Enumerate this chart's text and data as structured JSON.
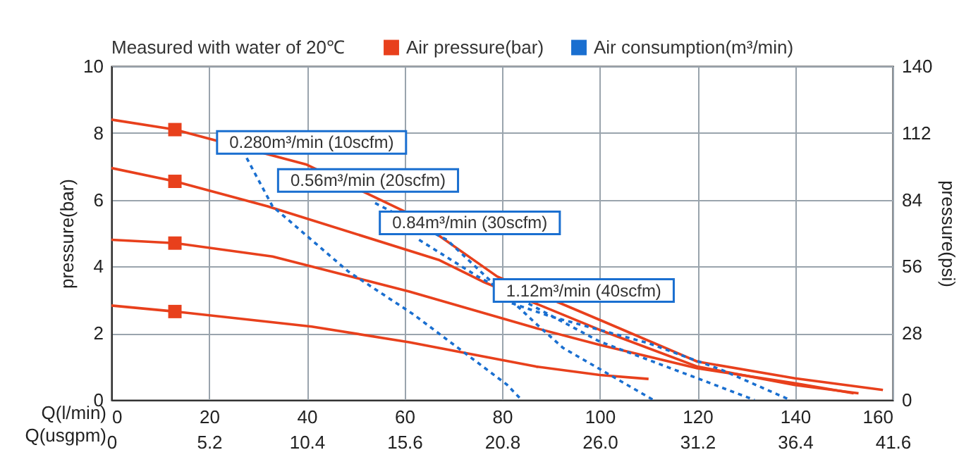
{
  "chart_data": {
    "type": "line",
    "legend_title": "Measured with water of 20℃",
    "xlabel": "Q(l/min)",
    "ylabel": "pressure(bar)",
    "y2label": "pressure(psi)",
    "x2label": "Q(usgpm)",
    "xlim": [
      0,
      160
    ],
    "xticks": [
      0,
      20,
      40,
      60,
      80,
      100,
      120,
      140,
      160
    ],
    "x2lim": [
      0,
      41.6
    ],
    "x2ticks": [
      0,
      5.2,
      10.4,
      15.6,
      20.8,
      {
        "value": 26,
        "label": "26.0"
      },
      31.2,
      36.4,
      41.6
    ],
    "ylim": [
      0,
      10
    ],
    "yticks": [
      0,
      2,
      4,
      6,
      8,
      10
    ],
    "y2lim": [
      0,
      140
    ],
    "y2ticks": [
      0,
      28,
      56,
      84,
      112,
      140
    ],
    "grid": true,
    "legend": "top",
    "line_style": "solid",
    "series": [
      {
        "name": "Air pressure(bar)",
        "color": "#e8401c",
        "x": [
          0,
          13,
          40,
          60,
          79,
          100,
          120,
          140,
          158
        ],
        "values": [
          8.4,
          8.1,
          7.05,
          5.65,
          3.7,
          2.4,
          1.15,
          0.65,
          0.3
        ]
      },
      {
        "color": "#e8401c",
        "x": [
          0,
          13,
          32,
          67,
          76,
          100,
          120,
          140,
          153
        ],
        "values": [
          6.95,
          6.55,
          5.8,
          4.2,
          3.55,
          2.1,
          1.0,
          0.45,
          0.2
        ]
      },
      {
        "color": "#e8401c",
        "x": [
          0,
          13,
          33,
          61,
          87,
          100,
          120,
          140,
          152
        ],
        "values": [
          4.8,
          4.7,
          4.3,
          3.25,
          2.15,
          1.65,
          0.95,
          0.5,
          0.2
        ]
      },
      {
        "color": "#e8401c",
        "x": [
          0,
          13,
          41,
          61,
          87,
          100,
          110
        ],
        "values": [
          2.83,
          2.65,
          2.2,
          1.73,
          1.0,
          0.75,
          0.63
        ]
      },
      {
        "name": "Air consumption(m³/min)",
        "color": "#1a6fd0",
        "line_style": "dashed",
        "x": [
          27.7,
          33,
          48.5,
          61.8,
          81,
          84
        ],
        "values": [
          7.25,
          5.8,
          3.85,
          2.57,
          0.46,
          0
        ]
      },
      {
        "color": "#1a6fd0",
        "line_style": "dashed",
        "x": [
          54,
          68.7,
          87,
          92.5,
          111
        ],
        "values": [
          5.9,
          4.8,
          2.28,
          1.56,
          0
        ]
      },
      {
        "color": "#1a6fd0",
        "line_style": "dashed",
        "x": [
          63,
          75,
          100,
          120,
          131.7
        ],
        "values": [
          4.8,
          3.7,
          1.75,
          0.65,
          0
        ]
      },
      {
        "color": "#1a6fd0",
        "line_style": "dashed",
        "x": [
          82,
          90,
          110,
          125,
          139
        ],
        "values": [
          2.9,
          2.5,
          1.7,
          0.9,
          0
        ]
      },
      {
        "type": "scatter",
        "marker": "square",
        "color": "#e8401c",
        "x": [
          13,
          13,
          13,
          13
        ],
        "values": [
          8.1,
          6.55,
          4.7,
          2.65
        ]
      }
    ],
    "annotations": [
      {
        "text": "0.280m³/min (10scfm)",
        "x": 27.7,
        "y": 7.25
      },
      {
        "text": "0.56m³/min (20scfm)",
        "x": 54,
        "y": 5.9
      },
      {
        "text": "0.84m³/min (30scfm)",
        "x": 63,
        "y": 4.8
      },
      {
        "text": "1.12m³/min (40scfm)",
        "x": 82,
        "y": 2.9
      }
    ]
  }
}
